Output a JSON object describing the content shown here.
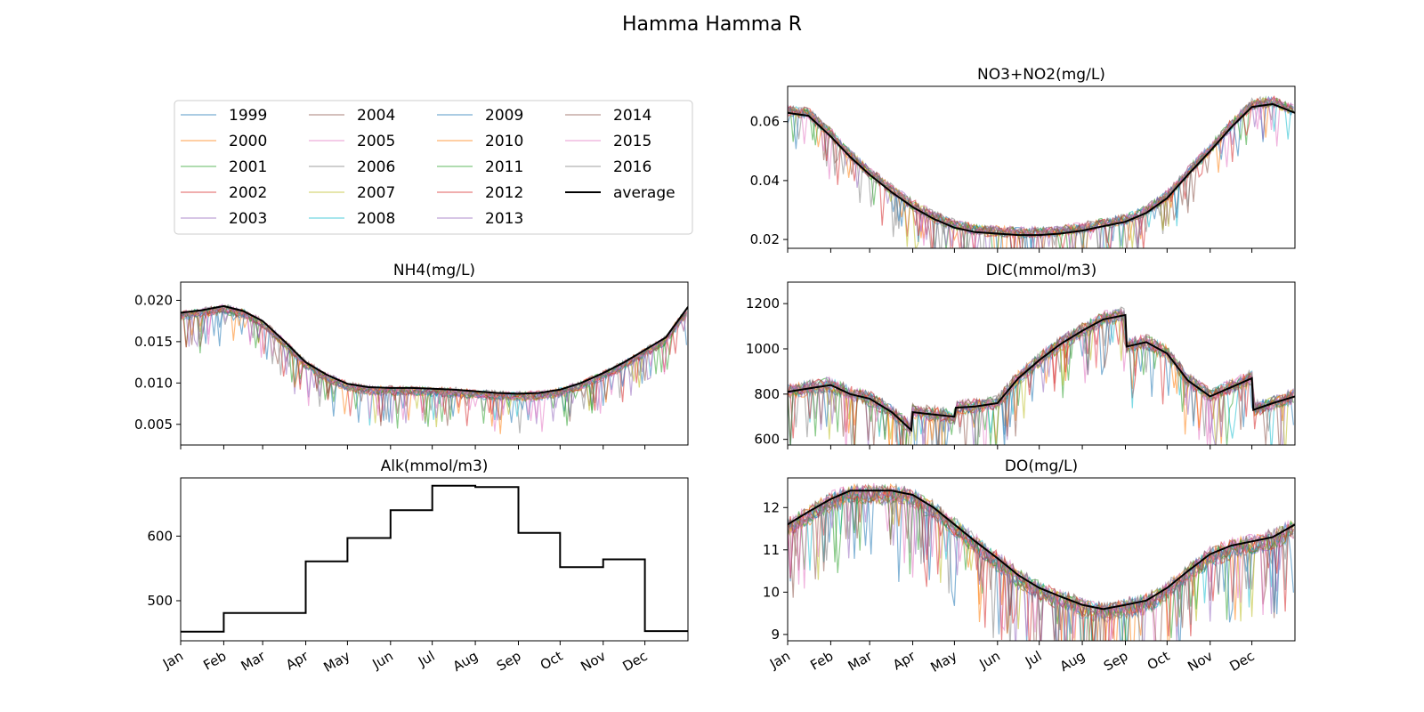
{
  "figure_title": "Hamma Hamma R",
  "legend": {
    "years": [
      "1999",
      "2000",
      "2001",
      "2002",
      "2003",
      "2004",
      "2005",
      "2006",
      "2007",
      "2008",
      "2009",
      "2010",
      "2011",
      "2012",
      "2013",
      "2014",
      "2015",
      "2016"
    ],
    "average_label": "average",
    "colors": [
      "#1f77b4",
      "#ff7f0e",
      "#2ca02c",
      "#d62728",
      "#9467bd",
      "#8c564b",
      "#e377c2",
      "#7f7f7f",
      "#bcbd22",
      "#17becf",
      "#1f77b4",
      "#ff7f0e",
      "#2ca02c",
      "#d62728",
      "#9467bd",
      "#8c564b",
      "#e377c2",
      "#7f7f7f"
    ],
    "average_color": "#000000"
  },
  "months": [
    "Jan",
    "Feb",
    "Mar",
    "Apr",
    "May",
    "Jun",
    "Jul",
    "Aug",
    "Sep",
    "Oct",
    "Nov",
    "Dec"
  ],
  "chart_data": [
    {
      "id": "no3",
      "type": "line",
      "title": "NO3+NO2(mg/L)",
      "ylim": [
        0.017,
        0.072
      ],
      "yticks": [
        0.02,
        0.04,
        0.06
      ],
      "ytick_labels": [
        "0.02",
        "0.04",
        "0.06"
      ],
      "x": [
        0,
        15,
        31,
        45,
        59,
        75,
        90,
        105,
        120,
        135,
        151,
        166,
        181,
        196,
        212,
        227,
        243,
        258,
        273,
        288,
        304,
        319,
        334,
        349,
        365
      ],
      "average": [
        0.063,
        0.062,
        0.055,
        0.048,
        0.042,
        0.036,
        0.031,
        0.027,
        0.024,
        0.0225,
        0.022,
        0.0215,
        0.0215,
        0.022,
        0.023,
        0.0245,
        0.026,
        0.029,
        0.034,
        0.042,
        0.05,
        0.058,
        0.065,
        0.066,
        0.063
      ],
      "year_spread": 0.004,
      "show_xtick_labels": false
    },
    {
      "id": "nh4",
      "type": "line",
      "title": "NH4(mg/L)",
      "ylim": [
        0.0025,
        0.0222
      ],
      "yticks": [
        0.005,
        0.01,
        0.015,
        0.02
      ],
      "ytick_labels": [
        "0.005",
        "0.010",
        "0.015",
        "0.020"
      ],
      "x": [
        0,
        15,
        31,
        45,
        59,
        75,
        90,
        105,
        120,
        135,
        151,
        166,
        181,
        196,
        212,
        227,
        243,
        258,
        273,
        288,
        304,
        319,
        334,
        349,
        365
      ],
      "average": [
        0.0185,
        0.0188,
        0.0193,
        0.0187,
        0.0175,
        0.015,
        0.0125,
        0.011,
        0.0099,
        0.0095,
        0.0094,
        0.0094,
        0.0093,
        0.0092,
        0.009,
        0.0088,
        0.0087,
        0.0088,
        0.0092,
        0.01,
        0.0112,
        0.0125,
        0.014,
        0.0155,
        0.0192
      ],
      "year_spread": 0.0012,
      "show_xtick_labels": false
    },
    {
      "id": "dic",
      "type": "line",
      "title": "DIC(mmol/m3)",
      "ylim": [
        575,
        1295
      ],
      "yticks": [
        600,
        800,
        1000,
        1200
      ],
      "ytick_labels": [
        "600",
        "800",
        "1000",
        "1200"
      ],
      "x": [
        0,
        15,
        31,
        45,
        59,
        75,
        89,
        90,
        105,
        120,
        121,
        135,
        151,
        166,
        181,
        196,
        212,
        227,
        243,
        244,
        258,
        273,
        288,
        304,
        319,
        334,
        335,
        349,
        365
      ],
      "average": [
        810,
        825,
        840,
        800,
        780,
        720,
        640,
        720,
        710,
        700,
        740,
        745,
        760,
        870,
        950,
        1020,
        1080,
        1130,
        1150,
        1010,
        1030,
        980,
        860,
        790,
        830,
        870,
        730,
        760,
        790
      ],
      "year_spread": 70,
      "show_xtick_labels": false
    },
    {
      "id": "alk",
      "type": "line",
      "title": "Alk(mmol/m3)",
      "ylim": [
        438,
        690
      ],
      "yticks": [
        500,
        600
      ],
      "ytick_labels": [
        "500",
        "600"
      ],
      "x": [
        0,
        31,
        31,
        90,
        90,
        120,
        120,
        151,
        151,
        181,
        181,
        212,
        212,
        243,
        243,
        273,
        273,
        304,
        304,
        334,
        334,
        365
      ],
      "average": [
        452,
        452,
        481,
        481,
        561,
        561,
        597,
        597,
        640,
        640,
        678,
        678,
        676,
        676,
        605,
        605,
        552,
        552,
        564,
        564,
        453,
        453
      ],
      "year_spread": 0,
      "show_xtick_labels": true
    },
    {
      "id": "do",
      "type": "line",
      "title": "DO(mg/L)",
      "ylim": [
        8.85,
        12.7
      ],
      "yticks": [
        9,
        10,
        11,
        12
      ],
      "ytick_labels": [
        "9",
        "10",
        "11",
        "12"
      ],
      "x": [
        0,
        15,
        31,
        45,
        59,
        75,
        90,
        105,
        120,
        135,
        151,
        166,
        181,
        196,
        212,
        227,
        243,
        258,
        273,
        288,
        304,
        319,
        334,
        349,
        365
      ],
      "average": [
        11.6,
        11.9,
        12.2,
        12.4,
        12.4,
        12.4,
        12.3,
        12.0,
        11.6,
        11.2,
        10.8,
        10.4,
        10.1,
        9.9,
        9.7,
        9.6,
        9.7,
        9.8,
        10.1,
        10.5,
        10.9,
        11.1,
        11.2,
        11.3,
        11.6
      ],
      "year_spread": 0.5,
      "show_xtick_labels": true
    }
  ]
}
